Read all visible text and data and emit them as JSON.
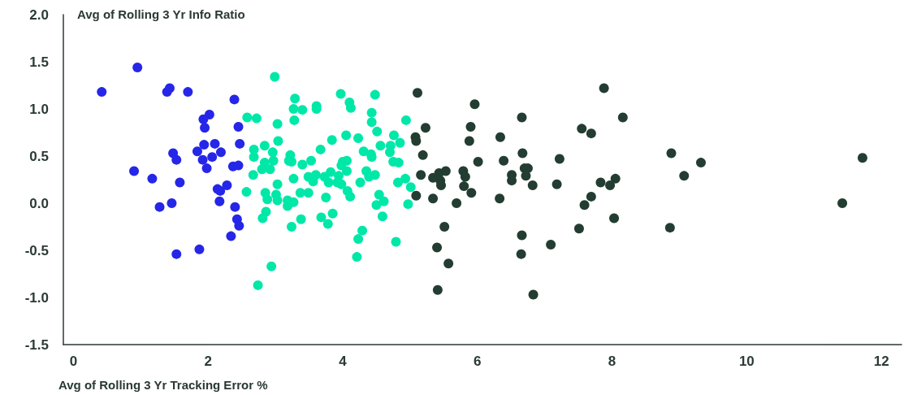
{
  "chart_data": {
    "type": "scatter",
    "xlabel": "Avg of Rolling 3 Yr Tracking Error %",
    "ylabel": "Avg of Rolling 3 Yr Info Ratio",
    "xlim": [
      -0.15,
      12.3
    ],
    "xticks": [
      0,
      2,
      4,
      6,
      8,
      10,
      12
    ],
    "ylim": [
      -1.5,
      2.0
    ],
    "yticks": [
      {
        "value": -1.5,
        "label": "-1.5"
      },
      {
        "value": -1,
        "label": "-1.0"
      },
      -0.5,
      {
        "value": 0,
        "label": "0.0"
      },
      0.5,
      {
        "value": 1,
        "label": "1.0"
      },
      1.5,
      {
        "value": 2,
        "label": "2.0"
      }
    ],
    "grid": false,
    "marker": "circle",
    "series": [
      {
        "color": "#2626e8",
        "x": [
          0.95,
          0.42,
          1.39,
          1.43,
          1.7,
          2.39,
          2.02,
          1.93,
          1.95,
          2.45,
          1.94,
          2.1,
          2.47,
          1.84,
          2.19,
          1.48,
          1.53,
          1.92,
          2.06,
          1.98,
          2.37,
          2.45,
          0.9,
          1.17,
          1.58,
          2.14,
          2.18,
          2.28,
          2.17,
          1.28,
          1.46,
          2.4,
          2.43,
          2.46,
          2.34,
          1.87,
          1.53
        ],
        "values": [
          1.44,
          1.18,
          1.18,
          1.22,
          1.18,
          1.1,
          0.94,
          0.89,
          0.8,
          0.81,
          0.62,
          0.63,
          0.63,
          0.55,
          0.54,
          0.53,
          0.46,
          0.46,
          0.49,
          0.37,
          0.39,
          0.4,
          0.34,
          0.26,
          0.22,
          0.15,
          0.13,
          0.19,
          0.02,
          -0.04,
          0.0,
          -0.04,
          -0.17,
          -0.24,
          -0.35,
          -0.49,
          -0.54
        ]
      },
      {
        "color": "#00e8a8",
        "x": [
          2.58,
          2.99,
          3.29,
          3.27,
          3.4,
          3.61,
          3.61,
          2.72,
          3.03,
          3.28,
          3.04,
          3.84,
          2.84,
          2.68,
          2.68,
          2.96,
          2.97,
          3.22,
          3.67,
          2.84,
          2.8,
          2.92,
          3.2,
          3.24,
          3.53,
          3.4,
          2.67,
          3.03,
          3.27,
          3.49,
          3.6,
          3.56,
          3.73,
          3.79,
          3.82,
          2.57,
          2.85,
          2.88,
          3.01,
          3.03,
          3.18,
          3.18,
          3.27,
          3.37,
          3.49,
          3.75,
          2.86,
          2.81,
          3.24,
          3.38,
          3.68,
          3.78,
          2.94,
          2.74,
          3.85,
          3.97,
          4.48,
          4.1,
          4.12,
          4.43,
          4.43,
          4.94,
          4.51,
          4.05,
          4.23,
          4.76,
          4.85,
          4.56,
          4.71,
          4.7,
          4.31,
          4.42,
          4.43,
          4.0,
          4.06,
          3.98,
          4.75,
          4.83,
          4.06,
          4.35,
          4.39,
          4.48,
          3.94,
          3.92,
          3.98,
          4.26,
          4.82,
          4.93,
          5.01,
          4.07,
          4.11,
          4.54,
          4.61,
          4.5,
          4.97,
          4.59,
          4.29,
          4.23,
          4.79,
          4.21
        ],
        "values": [
          0.91,
          1.34,
          1.11,
          1.0,
          0.99,
          1.03,
          1.0,
          0.9,
          0.84,
          0.88,
          0.66,
          0.67,
          0.61,
          0.57,
          0.49,
          0.54,
          0.45,
          0.51,
          0.57,
          0.43,
          0.36,
          0.36,
          0.45,
          0.44,
          0.45,
          0.41,
          0.3,
          0.2,
          0.26,
          0.28,
          0.3,
          0.23,
          0.28,
          0.22,
          0.33,
          0.12,
          0.11,
          0.04,
          0.09,
          0.03,
          0.03,
          -0.03,
          0.01,
          0.11,
          0.11,
          0.06,
          -0.09,
          -0.16,
          -0.25,
          -0.17,
          -0.15,
          -0.22,
          -0.67,
          -0.87,
          -0.11,
          1.16,
          1.15,
          1.07,
          1.01,
          0.96,
          0.86,
          0.88,
          0.76,
          0.72,
          0.69,
          0.72,
          0.64,
          0.61,
          0.61,
          0.54,
          0.55,
          0.52,
          0.49,
          0.44,
          0.45,
          0.4,
          0.44,
          0.43,
          0.34,
          0.34,
          0.28,
          0.3,
          0.29,
          0.22,
          0.2,
          0.22,
          0.22,
          0.26,
          0.17,
          0.13,
          0.07,
          0.09,
          0.02,
          -0.02,
          -0.01,
          -0.14,
          -0.29,
          -0.38,
          -0.41,
          -0.57
        ]
      },
      {
        "color": "#243d32",
        "x": [
          5.11,
          5.23,
          5.08,
          5.09,
          5.19,
          5.16,
          5.09,
          5.96,
          6.66,
          5.9,
          5.88,
          6.34,
          7.55,
          6.01,
          6.39,
          6.67,
          7.22,
          5.34,
          5.43,
          5.53,
          5.45,
          5.46,
          5.79,
          5.82,
          5.8,
          6.51,
          6.51,
          6.7,
          6.75,
          6.72,
          6.82,
          7.18,
          5.34,
          5.91,
          5.69,
          6.33,
          7.59,
          5.51,
          7.51,
          6.66,
          7.09,
          5.4,
          6.65,
          5.57,
          5.41,
          6.83,
          7.88,
          8.16,
          7.69,
          8.88,
          9.32,
          9.07,
          11.72,
          7.83,
          8.05,
          7.97,
          7.69,
          8.03,
          8.86,
          11.42
        ],
        "values": [
          1.17,
          0.8,
          0.7,
          0.66,
          0.51,
          0.3,
          0.08,
          1.05,
          0.91,
          0.81,
          0.66,
          0.7,
          0.79,
          0.44,
          0.45,
          0.53,
          0.47,
          0.27,
          0.32,
          0.34,
          0.24,
          0.19,
          0.34,
          0.28,
          0.18,
          0.3,
          0.24,
          0.37,
          0.37,
          0.29,
          0.19,
          0.2,
          0.05,
          0.11,
          0.0,
          0.05,
          -0.02,
          -0.25,
          -0.27,
          -0.34,
          -0.44,
          -0.47,
          -0.54,
          -0.64,
          -0.92,
          -0.97,
          1.22,
          0.91,
          0.74,
          0.53,
          0.43,
          0.29,
          0.48,
          0.22,
          0.26,
          0.19,
          0.07,
          -0.16,
          -0.26,
          0.0
        ]
      }
    ]
  }
}
